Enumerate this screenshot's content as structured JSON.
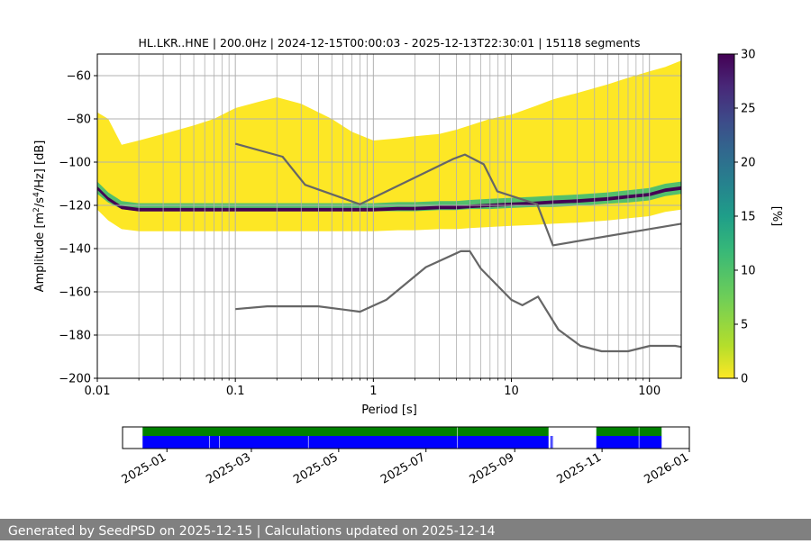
{
  "chart_data": [
    {
      "type": "heatmap",
      "title": "HL.LKR..HNE | 200.0Hz | 2024-12-15T00:00:03 - 2025-12-13T22:30:01 | 15118 segments",
      "xlabel": "Period [s]",
      "ylabel_parts": [
        "Amplitude [m",
        "2",
        "/s",
        "4",
        "/Hz] [dB]"
      ],
      "x_scale": "log",
      "xlim": [
        0.01,
        170
      ],
      "ylim": [
        -200,
        -50
      ],
      "x_ticks": [
        {
          "value": 0.01,
          "label": "0.01"
        },
        {
          "value": 0.1,
          "label": "0.1"
        },
        {
          "value": 1,
          "label": "1"
        },
        {
          "value": 10,
          "label": "10"
        },
        {
          "value": 100,
          "label": "100"
        }
      ],
      "y_ticks": [
        {
          "value": -60,
          "label": "−60"
        },
        {
          "value": -80,
          "label": "−80"
        },
        {
          "value": -100,
          "label": "−100"
        },
        {
          "value": -120,
          "label": "−120"
        },
        {
          "value": -140,
          "label": "−140"
        },
        {
          "value": -160,
          "label": "−160"
        },
        {
          "value": -180,
          "label": "−180"
        },
        {
          "value": -200,
          "label": "−200"
        }
      ],
      "grid": true,
      "colorbar": {
        "label": "[%]",
        "range": [
          0,
          30
        ],
        "ticks": [
          {
            "value": 0,
            "label": "0"
          },
          {
            "value": 5,
            "label": "5"
          },
          {
            "value": 10,
            "label": "10"
          },
          {
            "value": 15,
            "label": "15"
          },
          {
            "value": 20,
            "label": "20"
          },
          {
            "value": 25,
            "label": "25"
          },
          {
            "value": 30,
            "label": "30"
          }
        ],
        "colormap": "viridis_r"
      },
      "density_profile": {
        "periods": [
          0.01,
          0.012,
          0.015,
          0.02,
          0.03,
          0.05,
          0.07,
          0.1,
          0.15,
          0.2,
          0.3,
          0.5,
          0.7,
          1,
          1.5,
          2,
          3,
          4,
          5,
          7,
          10,
          15,
          20,
          30,
          50,
          70,
          100,
          130,
          170
        ],
        "upper_envelope": [
          -77,
          -80,
          -92,
          -90,
          -87,
          -83,
          -80,
          -75,
          -72,
          -70,
          -73,
          -80,
          -86,
          -90,
          -89,
          -88,
          -87,
          -85,
          -83,
          -80,
          -78,
          -74,
          -71,
          -68,
          -64,
          -61,
          -58,
          -56,
          -53
        ],
        "median": [
          -112,
          -117,
          -121,
          -122,
          -122,
          -122,
          -122,
          -122,
          -122,
          -122,
          -122,
          -122,
          -122,
          -122,
          -121.5,
          -121.5,
          -121,
          -121,
          -120.5,
          -120,
          -119.5,
          -119,
          -118.5,
          -118,
          -117,
          -116,
          -115,
          -113,
          -112
        ],
        "lower_envelope": [
          -115,
          -119,
          -122,
          -123,
          -123,
          -123,
          -123,
          -123,
          -123,
          -123,
          -123,
          -123,
          -123,
          -123,
          -123,
          -123,
          -122.5,
          -122.5,
          -122,
          -122,
          -121.5,
          -121,
          -121,
          -120.5,
          -119.5,
          -119,
          -118,
          -116,
          -115
        ]
      },
      "series": [
        {
          "x": [
            0.1,
            0.22,
            0.32,
            0.8,
            3.8,
            4.6,
            6.3,
            7.9,
            15.4,
            20,
            170
          ],
          "y": [
            -91.5,
            -97.5,
            -110.5,
            -119.5,
            -98.5,
            -96.5,
            -101,
            -113.5,
            -119.5,
            -138.5,
            -128.5
          ]
        },
        {
          "x": [
            0.1,
            0.17,
            0.4,
            0.8,
            1.24,
            2.4,
            4.3,
            5,
            6,
            10,
            12,
            15.6,
            21.9,
            31.6,
            45,
            70,
            101,
            154,
            170
          ],
          "y": [
            -168,
            -166.7,
            -166.7,
            -169.2,
            -163.7,
            -148.6,
            -141.2,
            -141.2,
            -149.2,
            -163.7,
            -166.2,
            -162.2,
            -177.5,
            -185,
            -187.5,
            -187.5,
            -185,
            -185,
            -185.5
          ]
        }
      ]
    },
    {
      "type": "timeline",
      "xlim": [
        "2024-12-01",
        "2026-01-01"
      ],
      "x_ticks": [
        "2025-01",
        "2025-03",
        "2025-05",
        "2025-07",
        "2025-09",
        "2025-11",
        "2026-01"
      ],
      "colors": {
        "upper_row": "#008000",
        "lower_row": "#0000ff"
      },
      "upper_row_intervals": [
        [
          "2024-12-15",
          "2025-07-23"
        ],
        [
          "2025-07-23",
          "2025-09-25"
        ],
        [
          "2025-10-28",
          "2025-11-27"
        ],
        [
          "2025-11-27",
          "2025-12-13"
        ]
      ],
      "lower_row_intervals": [
        [
          "2024-12-15",
          "2025-01-31"
        ],
        [
          "2025-01-31",
          "2025-02-07"
        ],
        [
          "2025-02-07",
          "2025-04-10"
        ],
        [
          "2025-04-10",
          "2025-07-23"
        ],
        [
          "2025-07-23",
          "2025-09-25"
        ],
        [
          "2025-09-26",
          "2025-09-27"
        ],
        [
          "2025-09-27",
          "2025-09-28"
        ],
        [
          "2025-10-28",
          "2025-11-27"
        ],
        [
          "2025-11-27",
          "2025-12-13"
        ]
      ]
    }
  ],
  "footer": {
    "text": "Generated by SeedPSD on 2025-12-15 | Calculations updated on 2025-12-14"
  }
}
